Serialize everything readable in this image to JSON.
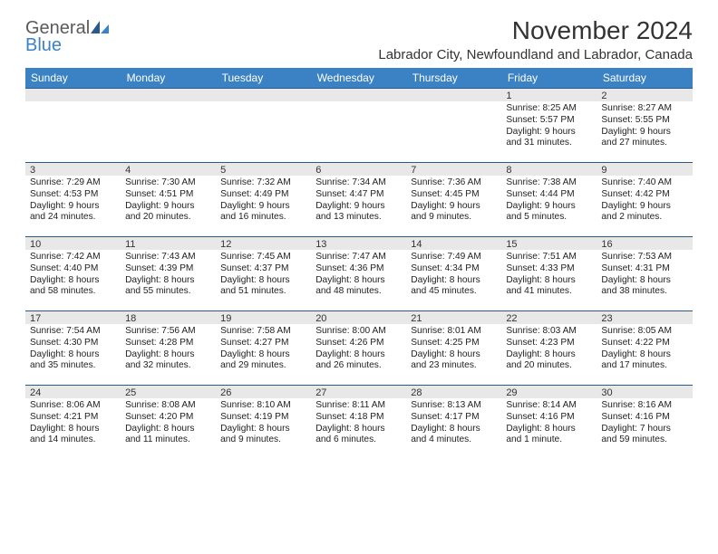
{
  "logo": {
    "line1": "General",
    "line2": "Blue"
  },
  "title": "November 2024",
  "location": "Labrador City, Newfoundland and Labrador, Canada",
  "colors": {
    "headerBg": "#3b82c4",
    "headerText": "#ffffff",
    "dateBarBg": "#e8e8e8",
    "dateBarBorder": "#2a5a8a",
    "bodyText": "#222222",
    "logoGray": "#5a5a5a",
    "logoBlue": "#3b82c4"
  },
  "dayNames": [
    "Sunday",
    "Monday",
    "Tuesday",
    "Wednesday",
    "Thursday",
    "Friday",
    "Saturday"
  ],
  "weeks": [
    [
      null,
      null,
      null,
      null,
      null,
      {
        "d": "1",
        "sr": "8:25 AM",
        "ss": "5:57 PM",
        "dl": "9 hours and 31 minutes."
      },
      {
        "d": "2",
        "sr": "8:27 AM",
        "ss": "5:55 PM",
        "dl": "9 hours and 27 minutes."
      }
    ],
    [
      {
        "d": "3",
        "sr": "7:29 AM",
        "ss": "4:53 PM",
        "dl": "9 hours and 24 minutes."
      },
      {
        "d": "4",
        "sr": "7:30 AM",
        "ss": "4:51 PM",
        "dl": "9 hours and 20 minutes."
      },
      {
        "d": "5",
        "sr": "7:32 AM",
        "ss": "4:49 PM",
        "dl": "9 hours and 16 minutes."
      },
      {
        "d": "6",
        "sr": "7:34 AM",
        "ss": "4:47 PM",
        "dl": "9 hours and 13 minutes."
      },
      {
        "d": "7",
        "sr": "7:36 AM",
        "ss": "4:45 PM",
        "dl": "9 hours and 9 minutes."
      },
      {
        "d": "8",
        "sr": "7:38 AM",
        "ss": "4:44 PM",
        "dl": "9 hours and 5 minutes."
      },
      {
        "d": "9",
        "sr": "7:40 AM",
        "ss": "4:42 PM",
        "dl": "9 hours and 2 minutes."
      }
    ],
    [
      {
        "d": "10",
        "sr": "7:42 AM",
        "ss": "4:40 PM",
        "dl": "8 hours and 58 minutes."
      },
      {
        "d": "11",
        "sr": "7:43 AM",
        "ss": "4:39 PM",
        "dl": "8 hours and 55 minutes."
      },
      {
        "d": "12",
        "sr": "7:45 AM",
        "ss": "4:37 PM",
        "dl": "8 hours and 51 minutes."
      },
      {
        "d": "13",
        "sr": "7:47 AM",
        "ss": "4:36 PM",
        "dl": "8 hours and 48 minutes."
      },
      {
        "d": "14",
        "sr": "7:49 AM",
        "ss": "4:34 PM",
        "dl": "8 hours and 45 minutes."
      },
      {
        "d": "15",
        "sr": "7:51 AM",
        "ss": "4:33 PM",
        "dl": "8 hours and 41 minutes."
      },
      {
        "d": "16",
        "sr": "7:53 AM",
        "ss": "4:31 PM",
        "dl": "8 hours and 38 minutes."
      }
    ],
    [
      {
        "d": "17",
        "sr": "7:54 AM",
        "ss": "4:30 PM",
        "dl": "8 hours and 35 minutes."
      },
      {
        "d": "18",
        "sr": "7:56 AM",
        "ss": "4:28 PM",
        "dl": "8 hours and 32 minutes."
      },
      {
        "d": "19",
        "sr": "7:58 AM",
        "ss": "4:27 PM",
        "dl": "8 hours and 29 minutes."
      },
      {
        "d": "20",
        "sr": "8:00 AM",
        "ss": "4:26 PM",
        "dl": "8 hours and 26 minutes."
      },
      {
        "d": "21",
        "sr": "8:01 AM",
        "ss": "4:25 PM",
        "dl": "8 hours and 23 minutes."
      },
      {
        "d": "22",
        "sr": "8:03 AM",
        "ss": "4:23 PM",
        "dl": "8 hours and 20 minutes."
      },
      {
        "d": "23",
        "sr": "8:05 AM",
        "ss": "4:22 PM",
        "dl": "8 hours and 17 minutes."
      }
    ],
    [
      {
        "d": "24",
        "sr": "8:06 AM",
        "ss": "4:21 PM",
        "dl": "8 hours and 14 minutes."
      },
      {
        "d": "25",
        "sr": "8:08 AM",
        "ss": "4:20 PM",
        "dl": "8 hours and 11 minutes."
      },
      {
        "d": "26",
        "sr": "8:10 AM",
        "ss": "4:19 PM",
        "dl": "8 hours and 9 minutes."
      },
      {
        "d": "27",
        "sr": "8:11 AM",
        "ss": "4:18 PM",
        "dl": "8 hours and 6 minutes."
      },
      {
        "d": "28",
        "sr": "8:13 AM",
        "ss": "4:17 PM",
        "dl": "8 hours and 4 minutes."
      },
      {
        "d": "29",
        "sr": "8:14 AM",
        "ss": "4:16 PM",
        "dl": "8 hours and 1 minute."
      },
      {
        "d": "30",
        "sr": "8:16 AM",
        "ss": "4:16 PM",
        "dl": "7 hours and 59 minutes."
      }
    ]
  ],
  "labels": {
    "sunrise": "Sunrise:",
    "sunset": "Sunset:",
    "daylight": "Daylight:"
  }
}
